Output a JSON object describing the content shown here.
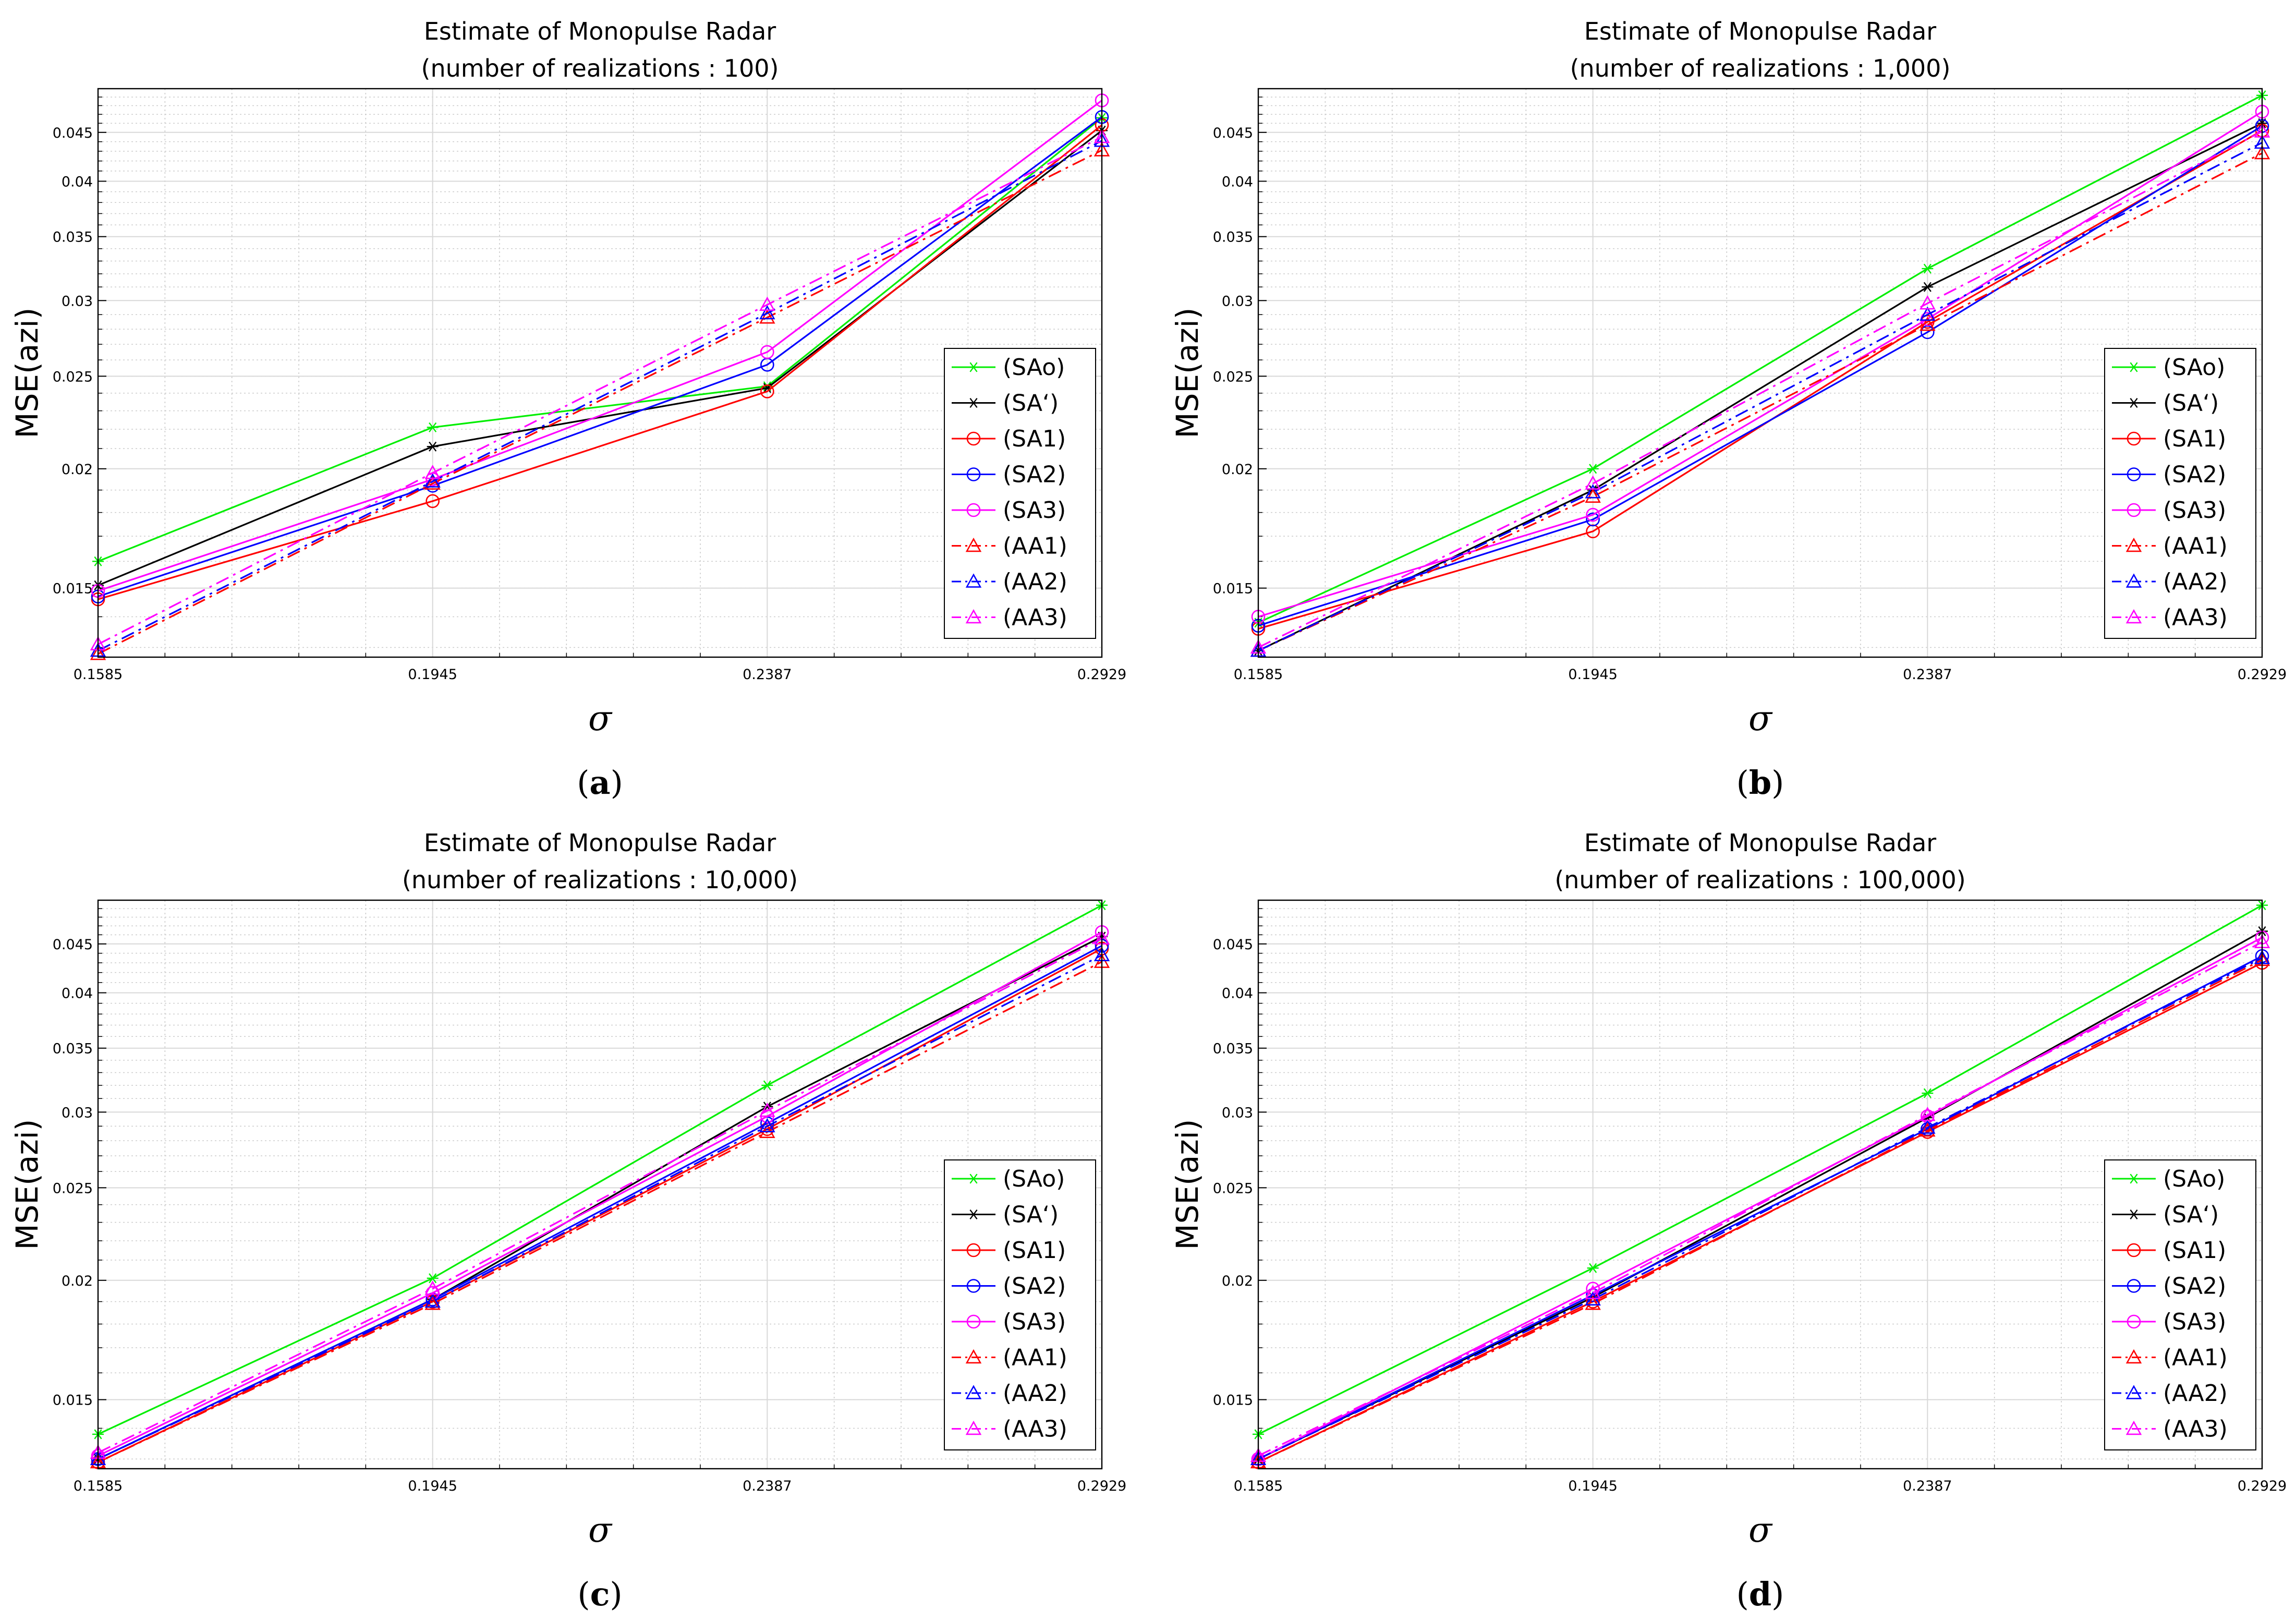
{
  "chart_data": [
    {
      "type": "line",
      "panel_label": "a",
      "title": "Estimate of Monopulse Radar",
      "subtitle": "(number of realizations : 100)",
      "xlabel": "σ",
      "ylabel": "MSE(azi)",
      "x": [
        0.1585,
        0.1945,
        0.2387,
        0.2929
      ],
      "x_tick_labels": [
        "0.1585",
        "0.1945",
        "0.2387",
        "0.2929"
      ],
      "y_ticks": [
        0.015,
        0.02,
        0.025,
        0.03,
        0.035,
        0.04,
        0.045
      ],
      "y_tick_labels": [
        "0.015",
        "0.02",
        "0.025",
        "0.03",
        "0.035",
        "0.04",
        "0.045"
      ],
      "ylim": [
        0.0127,
        0.05
      ],
      "yscale": "log",
      "grid": true,
      "legend_position": "right",
      "series": [
        {
          "name": "(SAo)",
          "values": [
            0.016,
            0.0221,
            0.0244,
            0.0466
          ]
        },
        {
          "name": "(SA‘)",
          "values": [
            0.0151,
            0.0211,
            0.0243,
            0.0452
          ]
        },
        {
          "name": "(SA1)",
          "values": [
            0.0146,
            0.0185,
            0.0241,
            0.0458
          ]
        },
        {
          "name": "(SA2)",
          "values": [
            0.0147,
            0.0192,
            0.0257,
            0.0467
          ]
        },
        {
          "name": "(SA3)",
          "values": [
            0.0149,
            0.0195,
            0.0265,
            0.0486
          ]
        },
        {
          "name": "(AA1)",
          "values": [
            0.0128,
            0.0193,
            0.0288,
            0.0431
          ]
        },
        {
          "name": "(AA2)",
          "values": [
            0.0129,
            0.0194,
            0.0291,
            0.0441
          ]
        },
        {
          "name": "(AA3)",
          "values": [
            0.0131,
            0.0198,
            0.0297,
            0.0445
          ]
        }
      ]
    },
    {
      "type": "line",
      "panel_label": "b",
      "title": "Estimate of Monopulse Radar",
      "subtitle": "(number of realizations : 1,000)",
      "xlabel": "σ",
      "ylabel": "MSE(azi)",
      "x": [
        0.1585,
        0.1945,
        0.2387,
        0.2929
      ],
      "x_tick_labels": [
        "0.1585",
        "0.1945",
        "0.2387",
        "0.2929"
      ],
      "y_ticks": [
        0.015,
        0.02,
        0.025,
        0.03,
        0.035,
        0.04,
        0.045
      ],
      "y_tick_labels": [
        "0.015",
        "0.02",
        "0.025",
        "0.03",
        "0.035",
        "0.04",
        "0.045"
      ],
      "ylim": [
        0.0127,
        0.05
      ],
      "yscale": "log",
      "grid": true,
      "legend_position": "right",
      "series": [
        {
          "name": "(SAo)",
          "values": [
            0.0138,
            0.02,
            0.0324,
            0.0492
          ]
        },
        {
          "name": "(SA‘)",
          "values": [
            0.0129,
            0.019,
            0.031,
            0.046
          ]
        },
        {
          "name": "(SA1)",
          "values": [
            0.0136,
            0.0172,
            0.0285,
            0.0452
          ]
        },
        {
          "name": "(SA2)",
          "values": [
            0.0137,
            0.0177,
            0.0278,
            0.0457
          ]
        },
        {
          "name": "(SA3)",
          "values": [
            0.014,
            0.0179,
            0.0287,
            0.0473
          ]
        },
        {
          "name": "(AA1)",
          "values": [
            0.0129,
            0.0187,
            0.0283,
            0.0428
          ]
        },
        {
          "name": "(AA2)",
          "values": [
            0.0129,
            0.0189,
            0.029,
            0.0439
          ]
        },
        {
          "name": "(AA3)",
          "values": [
            0.013,
            0.0193,
            0.0298,
            0.0451
          ]
        }
      ]
    },
    {
      "type": "line",
      "panel_label": "c",
      "title": "Estimate of Monopulse Radar",
      "subtitle": "(number of realizations : 10,000)",
      "xlabel": "σ",
      "ylabel": "MSE(azi)",
      "x": [
        0.1585,
        0.1945,
        0.2387,
        0.2929
      ],
      "x_tick_labels": [
        "0.1585",
        "0.1945",
        "0.2387",
        "0.2929"
      ],
      "y_ticks": [
        0.015,
        0.02,
        0.025,
        0.03,
        0.035,
        0.04,
        0.045
      ],
      "y_tick_labels": [
        "0.015",
        "0.02",
        "0.025",
        "0.03",
        "0.035",
        "0.04",
        "0.045"
      ],
      "ylim": [
        0.0127,
        0.05
      ],
      "yscale": "log",
      "grid": true,
      "legend_position": "right",
      "series": [
        {
          "name": "(SAo)",
          "values": [
            0.0138,
            0.0201,
            0.032,
            0.0494
          ]
        },
        {
          "name": "(SA‘)",
          "values": [
            0.013,
            0.0191,
            0.0304,
            0.0458
          ]
        },
        {
          "name": "(SA1)",
          "values": [
            0.0129,
            0.019,
            0.0288,
            0.0445
          ]
        },
        {
          "name": "(SA2)",
          "values": [
            0.013,
            0.0191,
            0.0292,
            0.0448
          ]
        },
        {
          "name": "(SA3)",
          "values": [
            0.0131,
            0.0194,
            0.0297,
            0.0463
          ]
        },
        {
          "name": "(AA1)",
          "values": [
            0.0129,
            0.0189,
            0.0286,
            0.0431
          ]
        },
        {
          "name": "(AA2)",
          "values": [
            0.013,
            0.019,
            0.029,
            0.0438
          ]
        },
        {
          "name": "(AA3)",
          "values": [
            0.0132,
            0.0196,
            0.0301,
            0.0456
          ]
        }
      ]
    },
    {
      "type": "line",
      "panel_label": "d",
      "title": "Estimate of Monopulse Radar",
      "subtitle": "(number of realizations : 100,000)",
      "xlabel": "σ",
      "ylabel": "MSE(azi)",
      "x": [
        0.1585,
        0.1945,
        0.2387,
        0.2929
      ],
      "x_tick_labels": [
        "0.1585",
        "0.1945",
        "0.2387",
        "0.2929"
      ],
      "y_ticks": [
        0.015,
        0.02,
        0.025,
        0.03,
        0.035,
        0.04,
        0.045
      ],
      "y_tick_labels": [
        "0.015",
        "0.02",
        "0.025",
        "0.03",
        "0.035",
        "0.04",
        "0.045"
      ],
      "ylim": [
        0.0127,
        0.05
      ],
      "yscale": "log",
      "grid": true,
      "legend_position": "right",
      "series": [
        {
          "name": "(SAo)",
          "values": [
            0.0138,
            0.0206,
            0.0314,
            0.0494
          ]
        },
        {
          "name": "(SA‘)",
          "values": [
            0.013,
            0.0192,
            0.0296,
            0.0464
          ]
        },
        {
          "name": "(SA1)",
          "values": [
            0.0129,
            0.019,
            0.0286,
            0.043
          ]
        },
        {
          "name": "(SA2)",
          "values": [
            0.013,
            0.0193,
            0.0288,
            0.0437
          ]
        },
        {
          "name": "(SA3)",
          "values": [
            0.013,
            0.0196,
            0.0297,
            0.0457
          ]
        },
        {
          "name": "(AA1)",
          "values": [
            0.0129,
            0.0189,
            0.0287,
            0.0433
          ]
        },
        {
          "name": "(AA2)",
          "values": [
            0.013,
            0.0191,
            0.0289,
            0.0435
          ]
        },
        {
          "name": "(AA3)",
          "values": [
            0.0131,
            0.0194,
            0.0298,
            0.0452
          ]
        }
      ]
    }
  ],
  "series_styles": [
    {
      "name": "(SAo)",
      "color": "#00ee00",
      "dash": "solid",
      "marker": "asterisk"
    },
    {
      "name": "(SA‘)",
      "color": "#000000",
      "dash": "solid",
      "marker": "asterisk"
    },
    {
      "name": "(SA1)",
      "color": "#ff0000",
      "dash": "solid",
      "marker": "circle"
    },
    {
      "name": "(SA2)",
      "color": "#0000ff",
      "dash": "solid",
      "marker": "circle"
    },
    {
      "name": "(SA3)",
      "color": "#ff00ff",
      "dash": "solid",
      "marker": "circle"
    },
    {
      "name": "(AA1)",
      "color": "#ff0000",
      "dash": "dashdot",
      "marker": "triangle"
    },
    {
      "name": "(AA2)",
      "color": "#0000ff",
      "dash": "dashdot",
      "marker": "triangle"
    },
    {
      "name": "(AA3)",
      "color": "#ff00ff",
      "dash": "dashdot",
      "marker": "triangle"
    }
  ]
}
